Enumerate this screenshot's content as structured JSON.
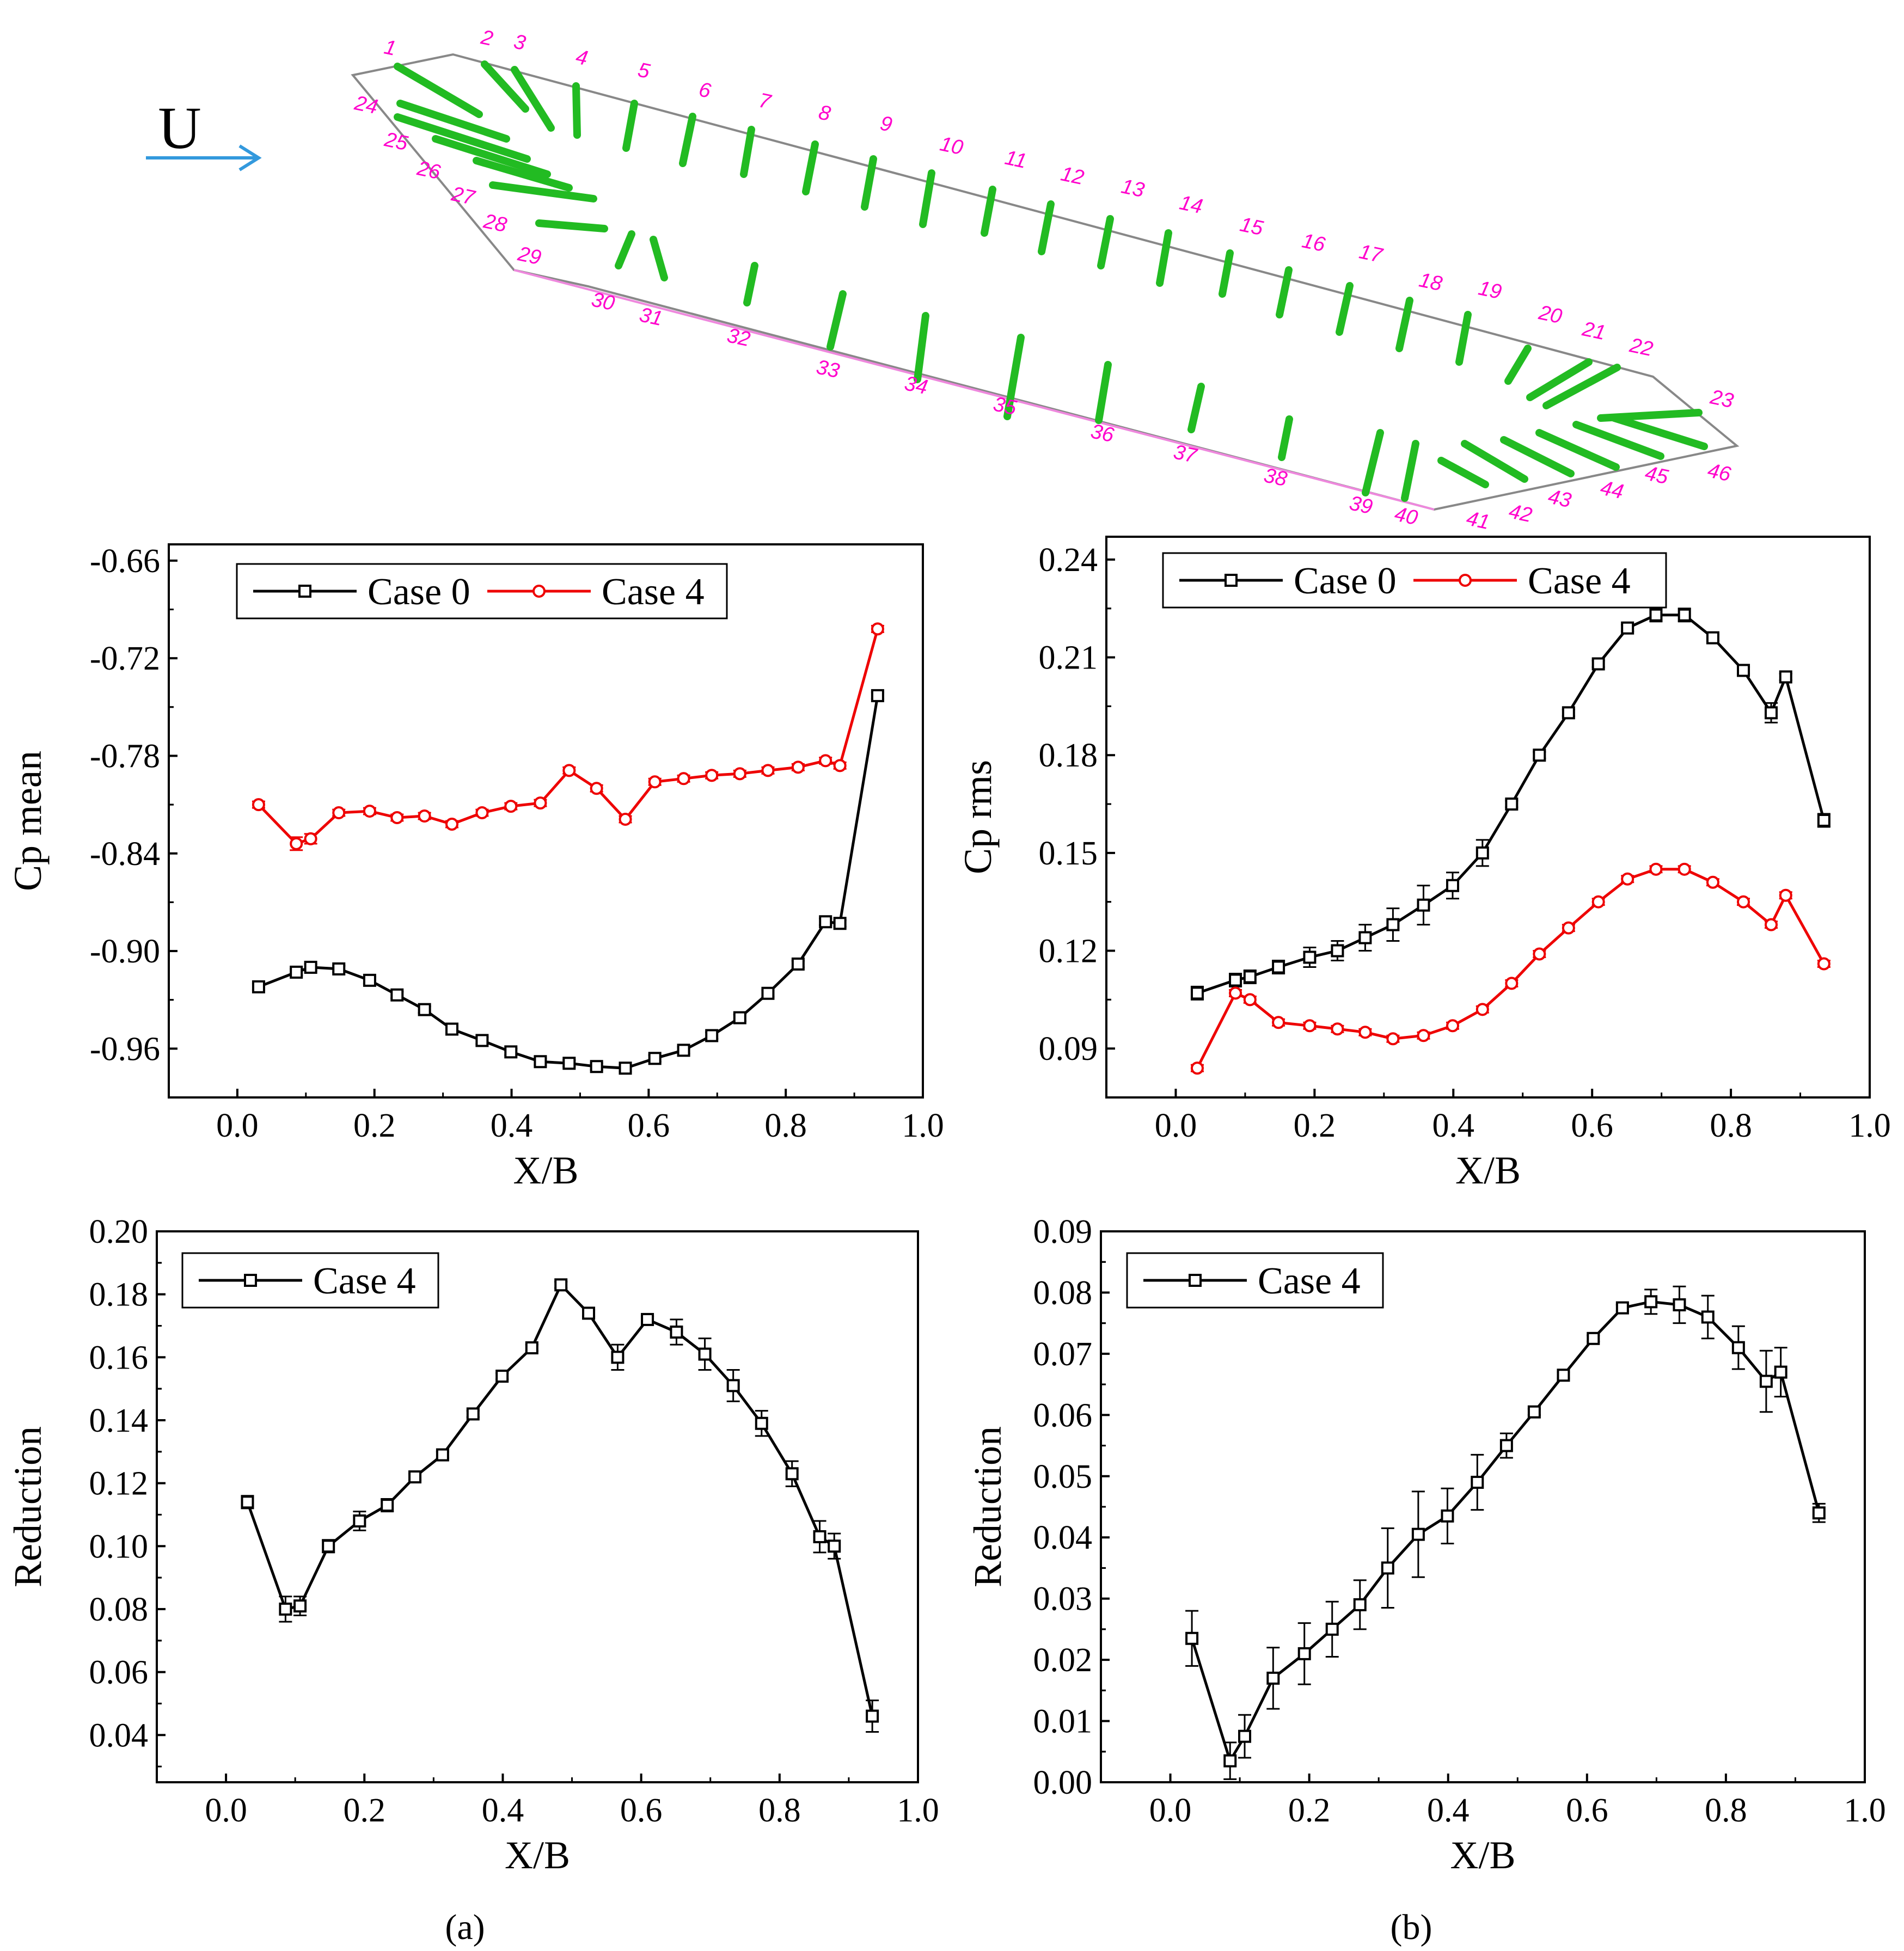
{
  "schematic": {
    "flow_label": "U",
    "flow_arrow_color": "#3399dd",
    "tap_label_color": "#ff00cc",
    "streak_color": "#22bb22",
    "outline_color": "#888888",
    "tap_labels": [
      "1",
      "2",
      "3",
      "4",
      "5",
      "6",
      "7",
      "8",
      "9",
      "10",
      "11",
      "12",
      "13",
      "14",
      "15",
      "16",
      "17",
      "18",
      "19",
      "20",
      "21",
      "22",
      "23",
      "24",
      "25",
      "26",
      "27",
      "28",
      "29",
      "30",
      "31",
      "32",
      "33",
      "34",
      "35",
      "36",
      "37",
      "38",
      "39",
      "40",
      "41",
      "42",
      "43",
      "44",
      "45",
      "46"
    ]
  },
  "captions": {
    "a": "(a)",
    "b": "(b)"
  },
  "chart_data": [
    {
      "id": "cp_mean",
      "type": "line",
      "xlabel": "X/B",
      "ylabel": "Cp mean",
      "xlim": [
        -0.1,
        1.0
      ],
      "ylim": [
        -0.99,
        -0.65
      ],
      "xticks": [
        "0.0",
        "0.2",
        "0.4",
        "0.6",
        "0.8",
        "1.0"
      ],
      "yticks": [
        "-0.66",
        "-0.72",
        "-0.78",
        "-0.84",
        "-0.90",
        "-0.96"
      ],
      "legend": {
        "position": "top",
        "entries": [
          "Case 0",
          "Case 4"
        ]
      },
      "series": [
        {
          "name": "Case 0",
          "marker": "square",
          "color": "#000000",
          "x": [
            0.031,
            0.086,
            0.107,
            0.148,
            0.193,
            0.233,
            0.273,
            0.313,
            0.357,
            0.399,
            0.442,
            0.484,
            0.524,
            0.566,
            0.609,
            0.651,
            0.692,
            0.733,
            0.774,
            0.818,
            0.858,
            0.879,
            0.934
          ],
          "y": [
            -0.922,
            -0.913,
            -0.91,
            -0.911,
            -0.918,
            -0.927,
            -0.936,
            -0.948,
            -0.955,
            -0.962,
            -0.968,
            -0.969,
            -0.971,
            -0.972,
            -0.966,
            -0.961,
            -0.952,
            -0.941,
            -0.926,
            -0.908,
            -0.882,
            -0.883,
            -0.743
          ],
          "err": [
            0.002,
            0.002,
            0.002,
            0.002,
            0.002,
            0.002,
            0.002,
            0.002,
            0.002,
            0.002,
            0.002,
            0.002,
            0.002,
            0.002,
            0.002,
            0.002,
            0.002,
            0.002,
            0.002,
            0.002,
            0.002,
            0.002,
            0.002
          ]
        },
        {
          "name": "Case 4",
          "marker": "circle",
          "color": "#ee0000",
          "x": [
            0.031,
            0.086,
            0.107,
            0.148,
            0.193,
            0.233,
            0.273,
            0.313,
            0.357,
            0.399,
            0.442,
            0.484,
            0.524,
            0.566,
            0.609,
            0.651,
            0.692,
            0.733,
            0.774,
            0.818,
            0.858,
            0.879,
            0.934
          ],
          "y": [
            -0.81,
            -0.834,
            -0.831,
            -0.815,
            -0.814,
            -0.818,
            -0.817,
            -0.822,
            -0.815,
            -0.811,
            -0.809,
            -0.789,
            -0.8,
            -0.819,
            -0.796,
            -0.794,
            -0.792,
            -0.791,
            -0.789,
            -0.787,
            -0.783,
            -0.786,
            -0.702
          ],
          "err": [
            0.002,
            0.004,
            0.003,
            0.002,
            0.002,
            0.002,
            0.002,
            0.002,
            0.002,
            0.002,
            0.002,
            0.002,
            0.002,
            0.002,
            0.002,
            0.002,
            0.002,
            0.002,
            0.002,
            0.002,
            0.002,
            0.002,
            0.002
          ]
        }
      ]
    },
    {
      "id": "cp_rms",
      "type": "line",
      "xlabel": "X/B",
      "ylabel": "Cp rms",
      "xlim": [
        -0.1,
        1.0
      ],
      "ylim": [
        0.075,
        0.247
      ],
      "xticks": [
        "0.0",
        "0.2",
        "0.4",
        "0.6",
        "0.8",
        "1.0"
      ],
      "yticks": [
        "0.24",
        "0.21",
        "0.18",
        "0.15",
        "0.12",
        "0.09"
      ],
      "legend": {
        "position": "top",
        "entries": [
          "Case 0",
          "Case 4"
        ]
      },
      "series": [
        {
          "name": "Case 0",
          "marker": "square",
          "color": "#000000",
          "x": [
            0.031,
            0.086,
            0.107,
            0.148,
            0.193,
            0.233,
            0.273,
            0.313,
            0.357,
            0.399,
            0.442,
            0.484,
            0.524,
            0.566,
            0.609,
            0.651,
            0.692,
            0.733,
            0.774,
            0.818,
            0.858,
            0.879,
            0.934
          ],
          "y": [
            0.107,
            0.111,
            0.112,
            0.115,
            0.118,
            0.12,
            0.124,
            0.128,
            0.134,
            0.14,
            0.15,
            0.165,
            0.18,
            0.193,
            0.208,
            0.219,
            0.223,
            0.223,
            0.216,
            0.206,
            0.193,
            0.204,
            0.16
          ],
          "err": [
            0.002,
            0.002,
            0.002,
            0.002,
            0.003,
            0.003,
            0.004,
            0.005,
            0.006,
            0.004,
            0.004,
            0.001,
            0.001,
            0.001,
            0.001,
            0.001,
            0.002,
            0.002,
            0.001,
            0.001,
            0.003,
            0.001,
            0.002
          ]
        },
        {
          "name": "Case 4",
          "marker": "circle",
          "color": "#ee0000",
          "x": [
            0.031,
            0.086,
            0.107,
            0.148,
            0.193,
            0.233,
            0.273,
            0.313,
            0.357,
            0.399,
            0.442,
            0.484,
            0.524,
            0.566,
            0.609,
            0.651,
            0.692,
            0.733,
            0.774,
            0.818,
            0.858,
            0.879,
            0.934
          ],
          "y": [
            0.084,
            0.107,
            0.105,
            0.098,
            0.097,
            0.096,
            0.095,
            0.093,
            0.094,
            0.097,
            0.102,
            0.11,
            0.119,
            0.127,
            0.135,
            0.142,
            0.145,
            0.145,
            0.141,
            0.135,
            0.128,
            0.137,
            0.116
          ],
          "err": [
            0.001,
            0.001,
            0.001,
            0.001,
            0.001,
            0.001,
            0.001,
            0.001,
            0.001,
            0.001,
            0.001,
            0.001,
            0.001,
            0.001,
            0.001,
            0.001,
            0.001,
            0.001,
            0.001,
            0.001,
            0.001,
            0.001,
            0.001
          ]
        }
      ]
    },
    {
      "id": "reduction_mean",
      "type": "line",
      "xlabel": "X/B",
      "ylabel": "Reduction",
      "xlim": [
        -0.1,
        1.0
      ],
      "ylim": [
        0.025,
        0.2
      ],
      "xticks": [
        "0.0",
        "0.2",
        "0.4",
        "0.6",
        "0.8",
        "1.0"
      ],
      "yticks": [
        "0.20",
        "0.18",
        "0.16",
        "0.14",
        "0.12",
        "0.10",
        "0.08",
        "0.06",
        "0.04"
      ],
      "legend": {
        "position": "top-left",
        "entries": [
          "Case 4"
        ]
      },
      "series": [
        {
          "name": "Case 4",
          "marker": "square",
          "color": "#000000",
          "x": [
            0.031,
            0.086,
            0.107,
            0.148,
            0.193,
            0.233,
            0.273,
            0.313,
            0.357,
            0.399,
            0.442,
            0.484,
            0.524,
            0.566,
            0.609,
            0.651,
            0.692,
            0.733,
            0.774,
            0.818,
            0.858,
            0.879,
            0.934
          ],
          "y": [
            0.114,
            0.08,
            0.081,
            0.1,
            0.108,
            0.113,
            0.122,
            0.129,
            0.142,
            0.154,
            0.163,
            0.183,
            0.174,
            0.16,
            0.172,
            0.168,
            0.161,
            0.151,
            0.139,
            0.123,
            0.103,
            0.1,
            0.046
          ],
          "err": [
            0.002,
            0.004,
            0.003,
            0.002,
            0.003,
            0.002,
            0.001,
            0.001,
            0.001,
            0.001,
            0.001,
            0.001,
            0.001,
            0.004,
            0.001,
            0.004,
            0.005,
            0.005,
            0.004,
            0.004,
            0.005,
            0.004,
            0.005
          ]
        }
      ]
    },
    {
      "id": "reduction_rms",
      "type": "line",
      "xlabel": "X/B",
      "ylabel": "Reduction",
      "xlim": [
        -0.1,
        1.0
      ],
      "ylim": [
        0.0,
        0.09
      ],
      "xticks": [
        "0.0",
        "0.2",
        "0.4",
        "0.6",
        "0.8",
        "1.0"
      ],
      "yticks": [
        "0.09",
        "0.08",
        "0.07",
        "0.06",
        "0.05",
        "0.04",
        "0.03",
        "0.02",
        "0.01",
        "0.00"
      ],
      "legend": {
        "position": "top-left",
        "entries": [
          "Case 4"
        ]
      },
      "series": [
        {
          "name": "Case 4",
          "marker": "square",
          "color": "#000000",
          "x": [
            0.031,
            0.086,
            0.107,
            0.148,
            0.193,
            0.233,
            0.273,
            0.313,
            0.357,
            0.399,
            0.442,
            0.484,
            0.524,
            0.566,
            0.609,
            0.651,
            0.692,
            0.733,
            0.774,
            0.818,
            0.858,
            0.879,
            0.934
          ],
          "y": [
            0.0235,
            0.0035,
            0.0075,
            0.017,
            0.021,
            0.025,
            0.029,
            0.035,
            0.0405,
            0.0435,
            0.049,
            0.055,
            0.0605,
            0.0665,
            0.0725,
            0.0775,
            0.0785,
            0.078,
            0.076,
            0.071,
            0.0655,
            0.067,
            0.044
          ],
          "err": [
            0.0045,
            0.003,
            0.0035,
            0.005,
            0.005,
            0.0045,
            0.004,
            0.0065,
            0.007,
            0.0045,
            0.0045,
            0.002,
            0.0005,
            0.0005,
            0.0005,
            0.0005,
            0.002,
            0.003,
            0.0035,
            0.0035,
            0.005,
            0.004,
            0.0015
          ]
        }
      ]
    }
  ]
}
